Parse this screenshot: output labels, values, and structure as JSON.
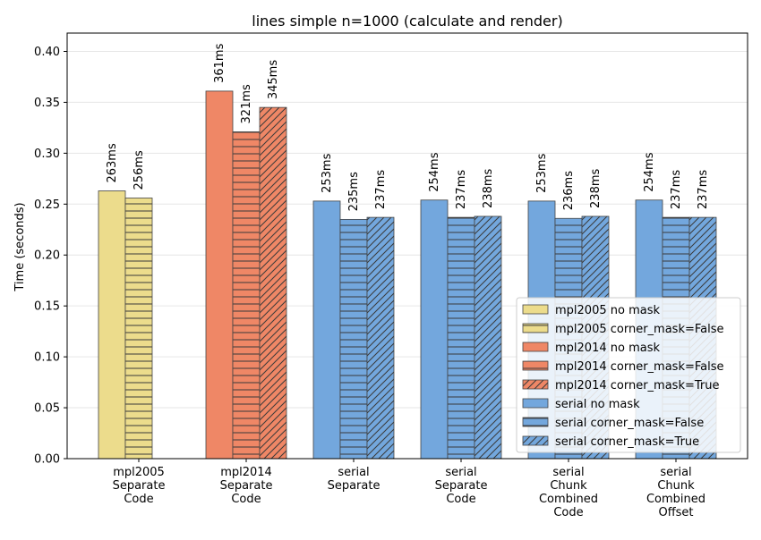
{
  "chart_data": {
    "type": "bar",
    "title": "lines simple n=1000 (calculate and render)",
    "xlabel": "",
    "ylabel": "Time (seconds)",
    "ylim": [
      0,
      0.418
    ],
    "yticks": [
      "0.00",
      "0.05",
      "0.10",
      "0.15",
      "0.20",
      "0.25",
      "0.30",
      "0.35",
      "0.40"
    ],
    "grid": "horizontal",
    "legend_position": "bottom-right",
    "categories": [
      {
        "lines": [
          "mpl2005",
          "Separate",
          "Code"
        ]
      },
      {
        "lines": [
          "mpl2014",
          "Separate",
          "Code"
        ]
      },
      {
        "lines": [
          "serial",
          "Separate"
        ]
      },
      {
        "lines": [
          "serial",
          "Separate",
          "Code"
        ]
      },
      {
        "lines": [
          "serial",
          "Chunk",
          "Combined",
          "Code"
        ]
      },
      {
        "lines": [
          "serial",
          "Chunk",
          "Combined",
          "Offset"
        ]
      }
    ],
    "groups": [
      {
        "category": 0,
        "bars": [
          {
            "series": "mpl2005 no mask",
            "value": 0.263,
            "label": "263ms"
          },
          {
            "series": "mpl2005 corner_mask=False",
            "value": 0.256,
            "label": "256ms"
          }
        ]
      },
      {
        "category": 1,
        "bars": [
          {
            "series": "mpl2014 no mask",
            "value": 0.361,
            "label": "361ms"
          },
          {
            "series": "mpl2014 corner_mask=False",
            "value": 0.321,
            "label": "321ms"
          },
          {
            "series": "mpl2014 corner_mask=True",
            "value": 0.345,
            "label": "345ms"
          }
        ]
      },
      {
        "category": 2,
        "bars": [
          {
            "series": "serial no mask",
            "value": 0.253,
            "label": "253ms"
          },
          {
            "series": "serial corner_mask=False",
            "value": 0.235,
            "label": "235ms"
          },
          {
            "series": "serial corner_mask=True",
            "value": 0.237,
            "label": "237ms"
          }
        ]
      },
      {
        "category": 3,
        "bars": [
          {
            "series": "serial no mask",
            "value": 0.254,
            "label": "254ms"
          },
          {
            "series": "serial corner_mask=False",
            "value": 0.237,
            "label": "237ms"
          },
          {
            "series": "serial corner_mask=True",
            "value": 0.238,
            "label": "238ms"
          }
        ]
      },
      {
        "category": 4,
        "bars": [
          {
            "series": "serial no mask",
            "value": 0.253,
            "label": "253ms"
          },
          {
            "series": "serial corner_mask=False",
            "value": 0.236,
            "label": "236ms"
          },
          {
            "series": "serial corner_mask=True",
            "value": 0.238,
            "label": "238ms"
          }
        ]
      },
      {
        "category": 5,
        "bars": [
          {
            "series": "serial no mask",
            "value": 0.254,
            "label": "254ms"
          },
          {
            "series": "serial corner_mask=False",
            "value": 0.237,
            "label": "237ms"
          },
          {
            "series": "serial corner_mask=True",
            "value": 0.237,
            "label": "237ms"
          }
        ]
      }
    ],
    "series": [
      {
        "name": "mpl2005 no mask",
        "color": "#ecdc8c",
        "hatch": "none"
      },
      {
        "name": "mpl2005 corner_mask=False",
        "color": "#ecdc8c",
        "hatch": "horizontal"
      },
      {
        "name": "mpl2014 no mask",
        "color": "#ef8766",
        "hatch": "none"
      },
      {
        "name": "mpl2014 corner_mask=False",
        "color": "#ef8766",
        "hatch": "horizontal"
      },
      {
        "name": "mpl2014 corner_mask=True",
        "color": "#ef8766",
        "hatch": "diagonal"
      },
      {
        "name": "serial no mask",
        "color": "#73a7dd",
        "hatch": "none"
      },
      {
        "name": "serial corner_mask=False",
        "color": "#73a7dd",
        "hatch": "horizontal"
      },
      {
        "name": "serial corner_mask=True",
        "color": "#73a7dd",
        "hatch": "diagonal"
      }
    ]
  }
}
